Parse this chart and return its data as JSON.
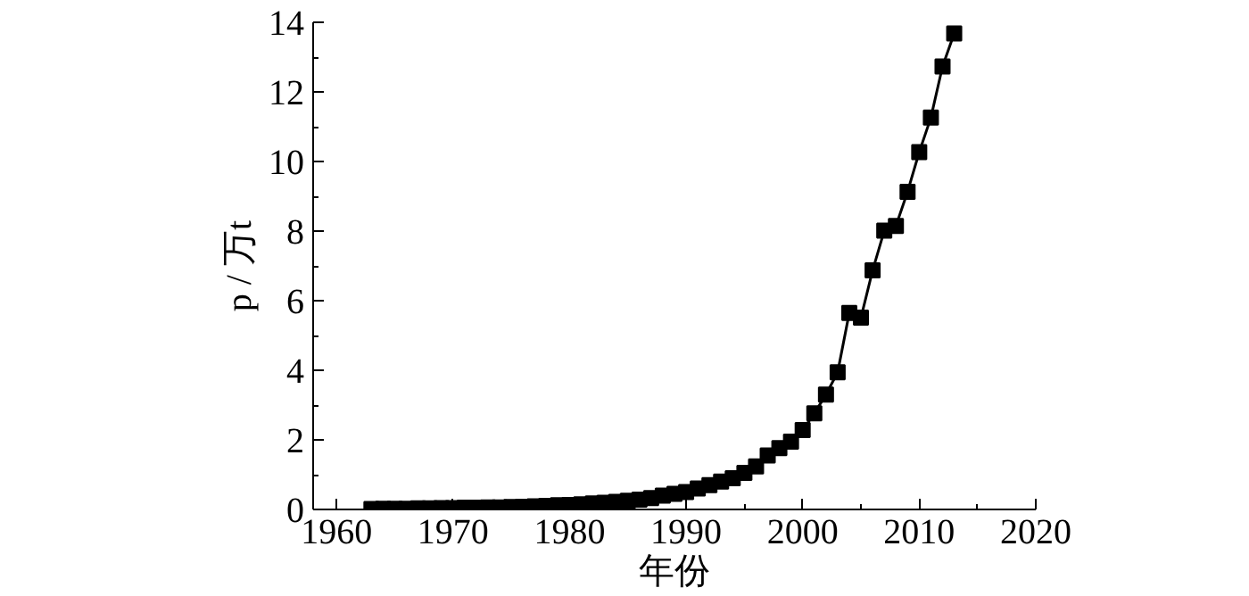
{
  "chart_data": {
    "type": "line",
    "xlabel": "年份",
    "ylabel": "p / 万t",
    "x": [
      1963,
      1964,
      1965,
      1966,
      1967,
      1968,
      1969,
      1970,
      1971,
      1972,
      1973,
      1974,
      1975,
      1976,
      1977,
      1978,
      1979,
      1980,
      1981,
      1982,
      1983,
      1984,
      1985,
      1986,
      1987,
      1988,
      1989,
      1990,
      1991,
      1992,
      1993,
      1994,
      1995,
      1996,
      1997,
      1998,
      1999,
      2000,
      2001,
      2002,
      2003,
      2004,
      2005,
      2006,
      2007,
      2008,
      2009,
      2010,
      2011,
      2012,
      2013
    ],
    "series": [
      {
        "color": "#000000",
        "values": [
          0.01,
          0.02,
          0.02,
          0.02,
          0.03,
          0.03,
          0.04,
          0.04,
          0.05,
          0.05,
          0.06,
          0.06,
          0.07,
          0.08,
          0.09,
          0.1,
          0.12,
          0.13,
          0.15,
          0.17,
          0.19,
          0.22,
          0.25,
          0.28,
          0.33,
          0.4,
          0.45,
          0.5,
          0.6,
          0.7,
          0.8,
          0.9,
          1.05,
          1.24,
          1.55,
          1.76,
          1.95,
          2.28,
          2.76,
          3.3,
          3.94,
          5.65,
          5.51,
          6.87,
          8.01,
          8.15,
          9.13,
          10.27,
          11.26,
          12.73,
          13.68
        ]
      }
    ],
    "xlim": [
      1958,
      2020
    ],
    "xticks": [
      1960,
      1970,
      1980,
      1990,
      2000,
      2010,
      2020
    ],
    "ylim": [
      0,
      14
    ],
    "yticks": [
      0,
      2,
      4,
      6,
      8,
      10,
      12,
      14
    ],
    "marker": "square",
    "line_style": "solid"
  }
}
